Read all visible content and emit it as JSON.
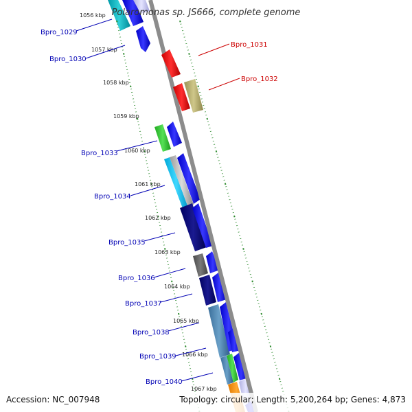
{
  "map": {
    "title": "Polaromonas sp. JS666, complete genome",
    "accession": "Accession: NC_007948",
    "summary": "Topology: circular; Length: 5,200,264 bp; Genes: 4,873",
    "ticks": [
      "1056 kbp",
      "1057 kbp",
      "1058 kbp",
      "1059 kbp",
      "1060 kbp",
      "1061 kbp",
      "1062 kbp",
      "1063 kbp",
      "1064 kbp",
      "1065 kbp",
      "1066 kbp",
      "1067 kbp"
    ],
    "genes_reverse": [
      "Bpro_1029",
      "Bpro_1030",
      "Bpro_1033",
      "Bpro_1034",
      "Bpro_1035",
      "Bpro_1036",
      "Bpro_1037",
      "Bpro_1038",
      "Bpro_1039",
      "Bpro_1040"
    ],
    "genes_forward": [
      "Bpro_1031",
      "Bpro_1032"
    ]
  },
  "colors": {
    "backbone": "#8c8c8c",
    "tick_marks": "#2e8b2e",
    "reverse_label": "#0000b4",
    "forward_label": "#cc0000",
    "cds_blue": "#1a1aee",
    "cds_red": "#ee1111",
    "cds_olive": "#b5ad6e"
  }
}
